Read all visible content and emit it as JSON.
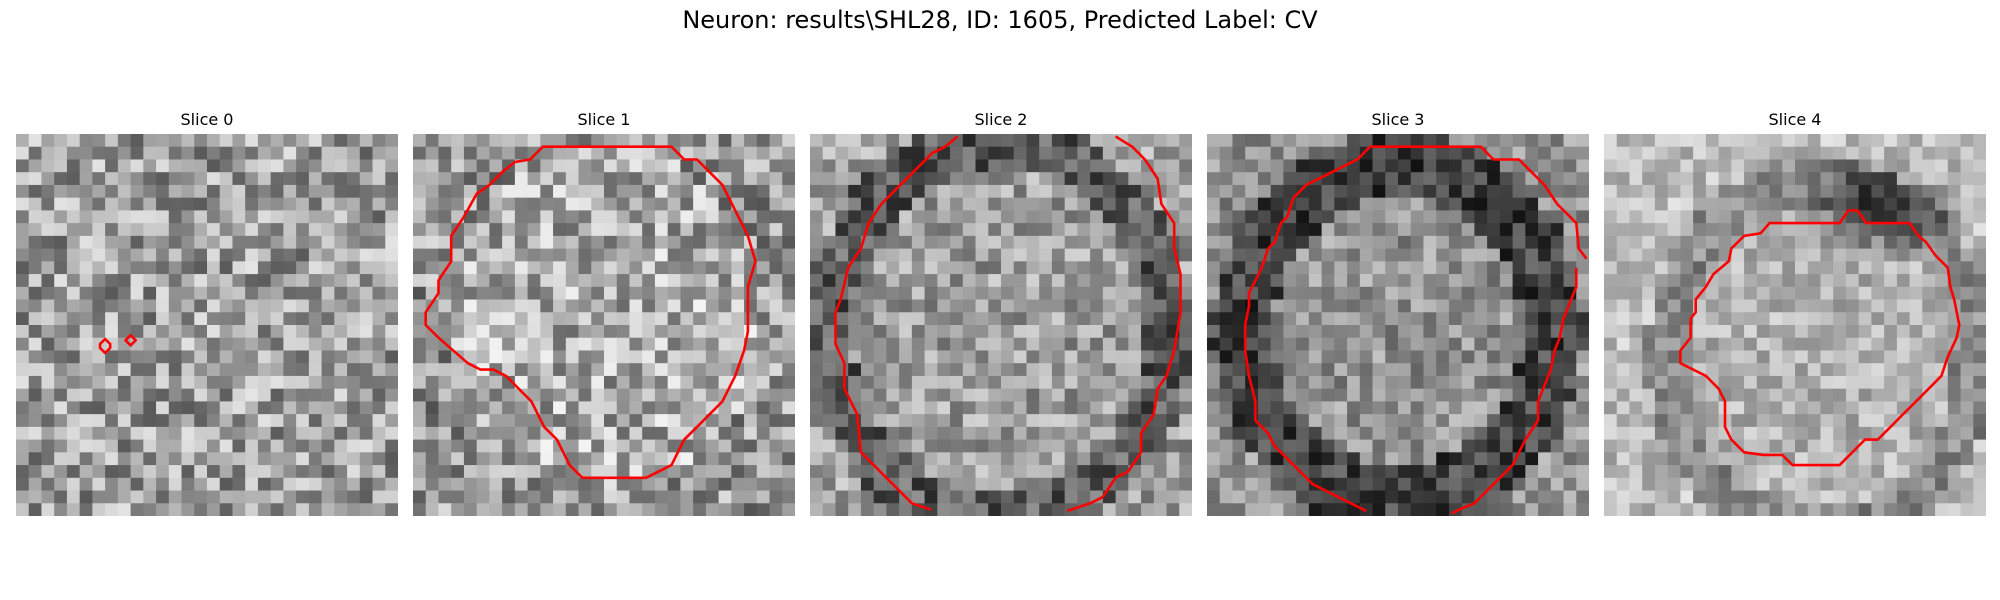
{
  "figure": {
    "suptitle": "Neuron: results\\SHL28, ID: 1605, Predicted Label: CV",
    "contour_color": "#ff0000",
    "colormap": "gray",
    "panels": [
      {
        "title": "Slice 0"
      },
      {
        "title": "Slice 1"
      },
      {
        "title": "Slice 2"
      },
      {
        "title": "Slice 3"
      },
      {
        "title": "Slice 4"
      }
    ]
  }
}
